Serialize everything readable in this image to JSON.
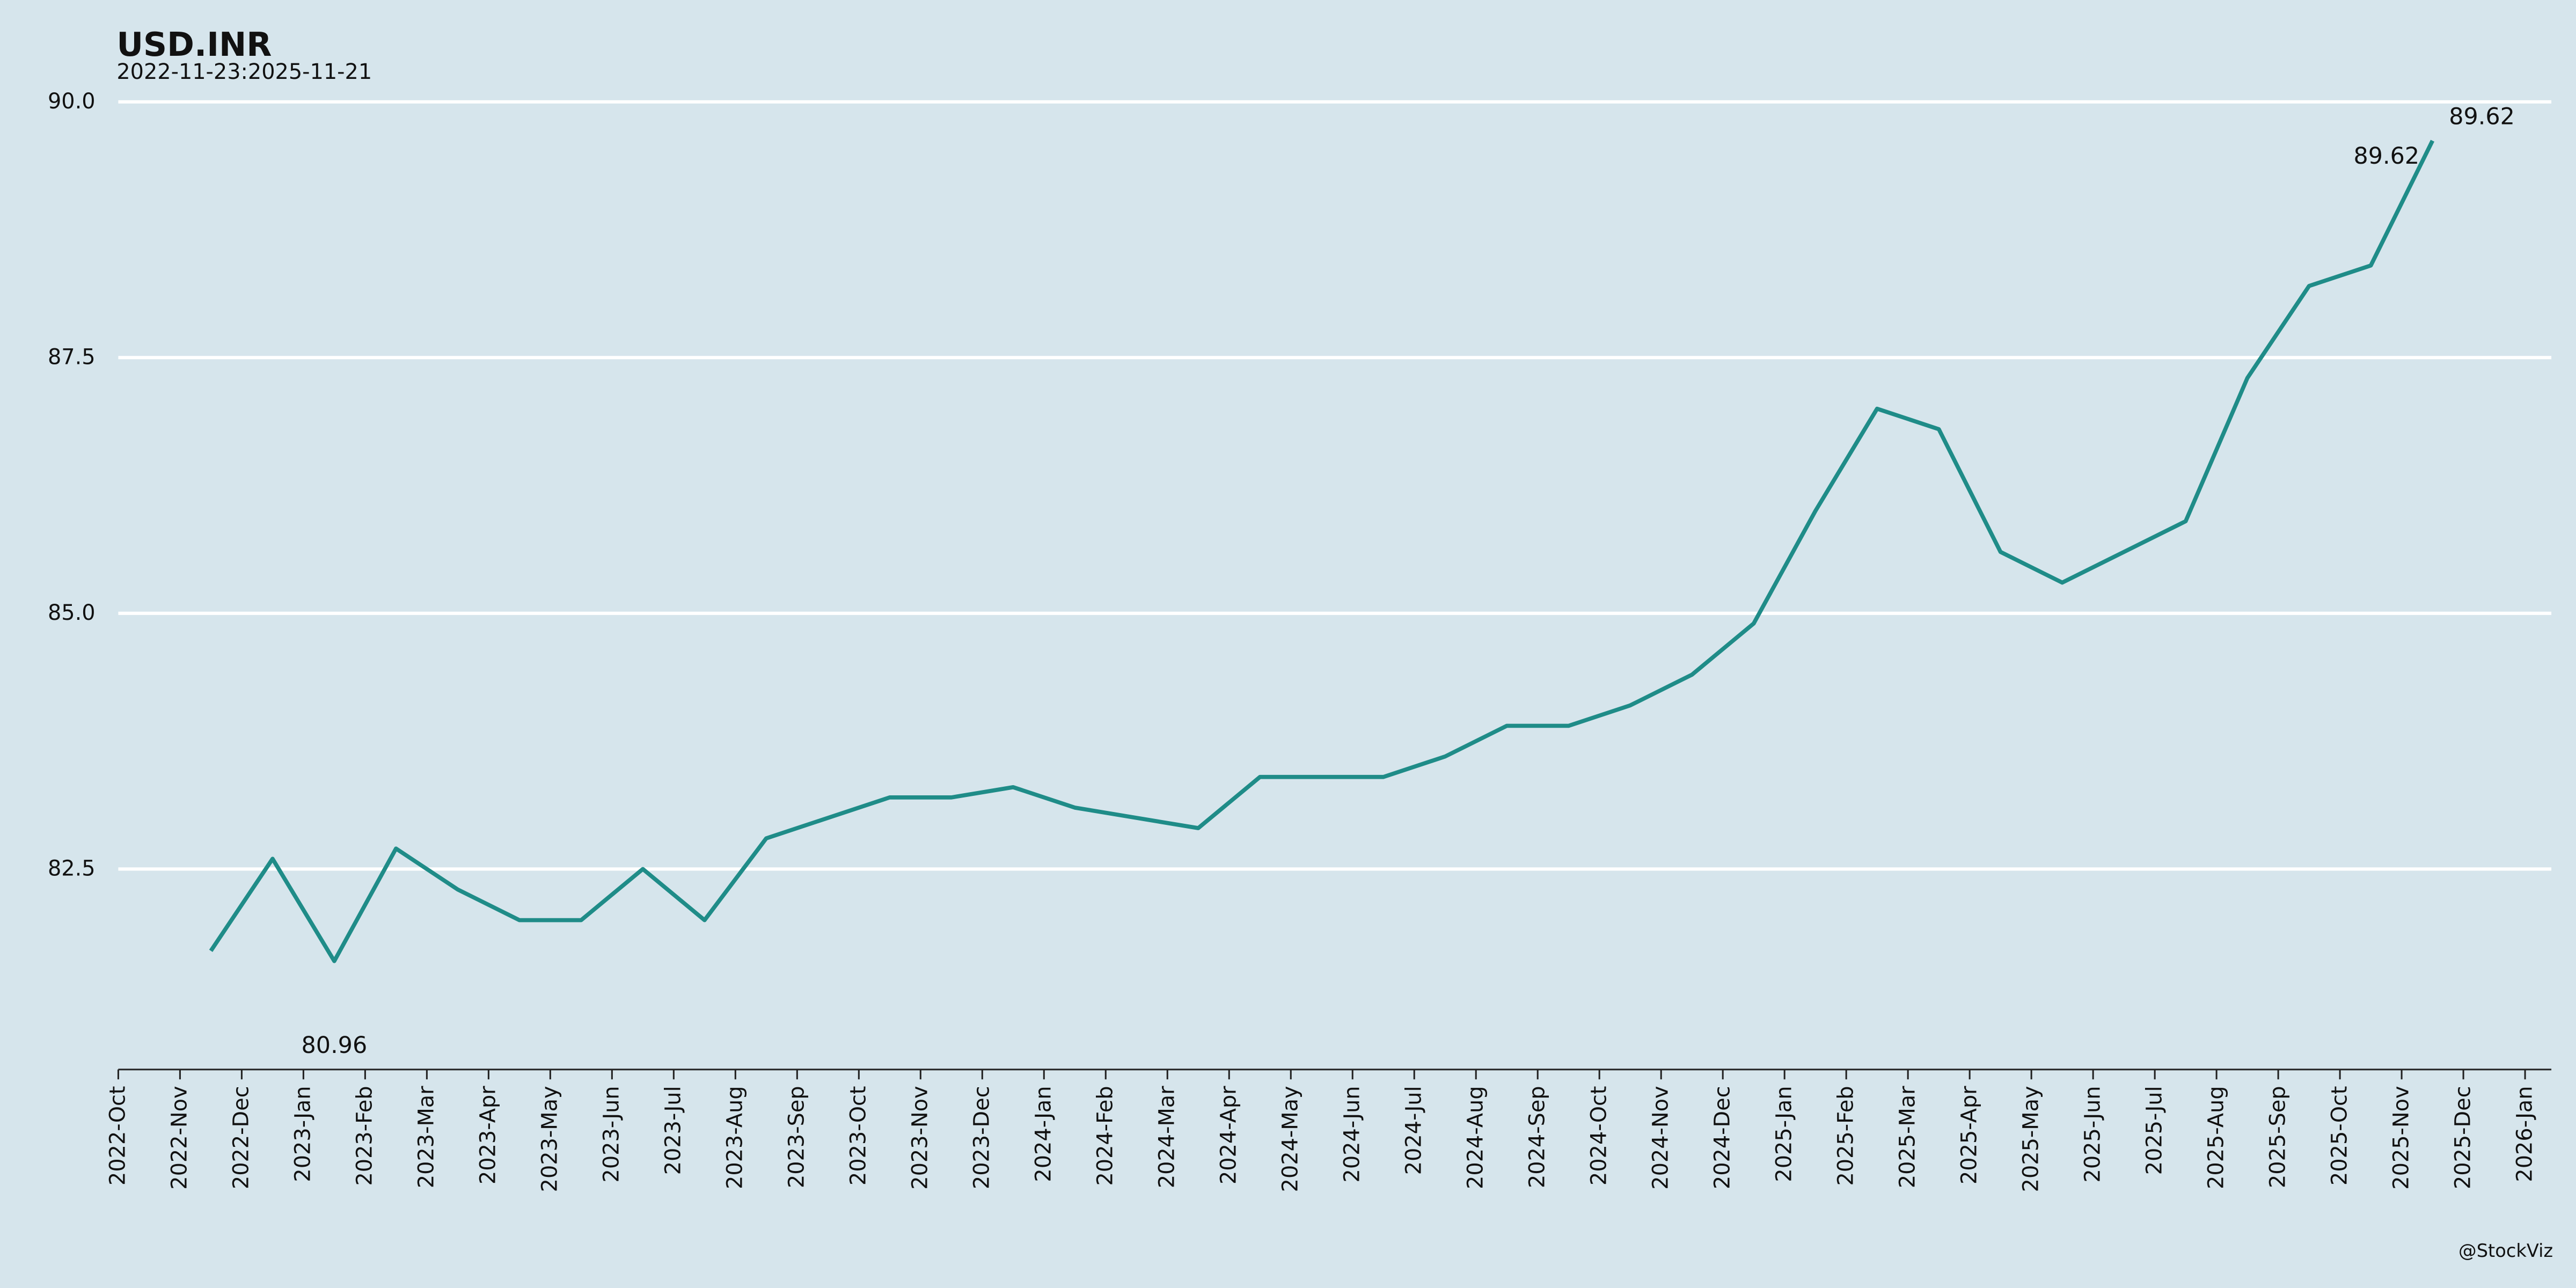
{
  "chart_data": {
    "type": "line",
    "title": "USD.INR",
    "subtitle": "2022-11-23:2025-11-21",
    "credit": "@StockViz",
    "x": [
      "2022-11",
      "2022-12",
      "2023-01",
      "2023-02",
      "2023-03",
      "2023-04",
      "2023-05",
      "2023-06",
      "2023-07",
      "2023-08",
      "2023-09",
      "2023-10",
      "2023-11",
      "2023-12",
      "2024-01",
      "2024-02",
      "2024-03",
      "2024-04",
      "2024-05",
      "2024-06",
      "2024-07",
      "2024-08",
      "2024-09",
      "2024-10",
      "2024-11",
      "2024-12",
      "2025-01",
      "2025-02",
      "2025-03",
      "2025-04",
      "2025-05",
      "2025-06",
      "2025-07",
      "2025-08",
      "2025-09",
      "2025-10",
      "2025-11"
    ],
    "series": [
      {
        "name": "USD.INR",
        "color": "#1f8c88",
        "values": [
          81.7,
          82.6,
          81.6,
          82.7,
          82.3,
          82.0,
          82.0,
          82.5,
          82.0,
          82.8,
          83.0,
          83.2,
          83.2,
          83.3,
          83.1,
          83.0,
          82.9,
          83.4,
          83.4,
          83.4,
          83.6,
          83.9,
          83.9,
          84.1,
          84.4,
          84.9,
          86.0,
          87.0,
          86.8,
          85.6,
          85.3,
          85.6,
          85.9,
          87.3,
          88.2,
          88.4,
          89.62
        ]
      }
    ],
    "annotations": [
      {
        "x": "2023-01",
        "y": 80.96
      },
      {
        "x": "2025-11",
        "y": 89.62
      },
      {
        "x": "2025-11",
        "y": 89.62
      }
    ],
    "xlim": [
      "2022-10",
      "2026-01"
    ],
    "xticks": [
      {
        "value": "2022-10",
        "label": "2022-Oct"
      },
      {
        "value": "2022-11",
        "label": "2022-Nov"
      },
      {
        "value": "2022-12",
        "label": "2022-Dec"
      },
      {
        "value": "2023-01",
        "label": "2023-Jan"
      },
      {
        "value": "2023-02",
        "label": "2023-Feb"
      },
      {
        "value": "2023-03",
        "label": "2023-Mar"
      },
      {
        "value": "2023-04",
        "label": "2023-Apr"
      },
      {
        "value": "2023-05",
        "label": "2023-May"
      },
      {
        "value": "2023-06",
        "label": "2023-Jun"
      },
      {
        "value": "2023-07",
        "label": "2023-Jul"
      },
      {
        "value": "2023-08",
        "label": "2023-Aug"
      },
      {
        "value": "2023-09",
        "label": "2023-Sep"
      },
      {
        "value": "2023-10",
        "label": "2023-Oct"
      },
      {
        "value": "2023-11",
        "label": "2023-Nov"
      },
      {
        "value": "2023-12",
        "label": "2023-Dec"
      },
      {
        "value": "2024-01",
        "label": "2024-Jan"
      },
      {
        "value": "2024-02",
        "label": "2024-Feb"
      },
      {
        "value": "2024-03",
        "label": "2024-Mar"
      },
      {
        "value": "2024-04",
        "label": "2024-Apr"
      },
      {
        "value": "2024-05",
        "label": "2024-May"
      },
      {
        "value": "2024-06",
        "label": "2024-Jun"
      },
      {
        "value": "2024-07",
        "label": "2024-Jul"
      },
      {
        "value": "2024-08",
        "label": "2024-Aug"
      },
      {
        "value": "2024-09",
        "label": "2024-Sep"
      },
      {
        "value": "2024-10",
        "label": "2024-Oct"
      },
      {
        "value": "2024-11",
        "label": "2024-Nov"
      },
      {
        "value": "2024-12",
        "label": "2024-Dec"
      },
      {
        "value": "2025-01",
        "label": "2025-Jan"
      },
      {
        "value": "2025-02",
        "label": "2025-Feb"
      },
      {
        "value": "2025-03",
        "label": "2025-Mar"
      },
      {
        "value": "2025-04",
        "label": "2025-Apr"
      },
      {
        "value": "2025-05",
        "label": "2025-May"
      },
      {
        "value": "2025-06",
        "label": "2025-Jun"
      },
      {
        "value": "2025-07",
        "label": "2025-Jul"
      },
      {
        "value": "2025-08",
        "label": "2025-Aug"
      },
      {
        "value": "2025-09",
        "label": "2025-Sep"
      },
      {
        "value": "2025-10",
        "label": "2025-Oct"
      },
      {
        "value": "2025-11",
        "label": "2025-Nov"
      },
      {
        "value": "2025-12",
        "label": "2025-Dec"
      },
      {
        "value": "2026-01",
        "label": "2026-Jan"
      }
    ],
    "ylim": [
      80.54,
      90
    ],
    "yticks": [
      {
        "value": 82.5,
        "label": "82.5"
      },
      {
        "value": 85,
        "label": "85.0"
      },
      {
        "value": 87.5,
        "label": "87.5"
      },
      {
        "value": 90,
        "label": "90.0"
      }
    ],
    "grid": true,
    "background": "#d6e5ec"
  }
}
